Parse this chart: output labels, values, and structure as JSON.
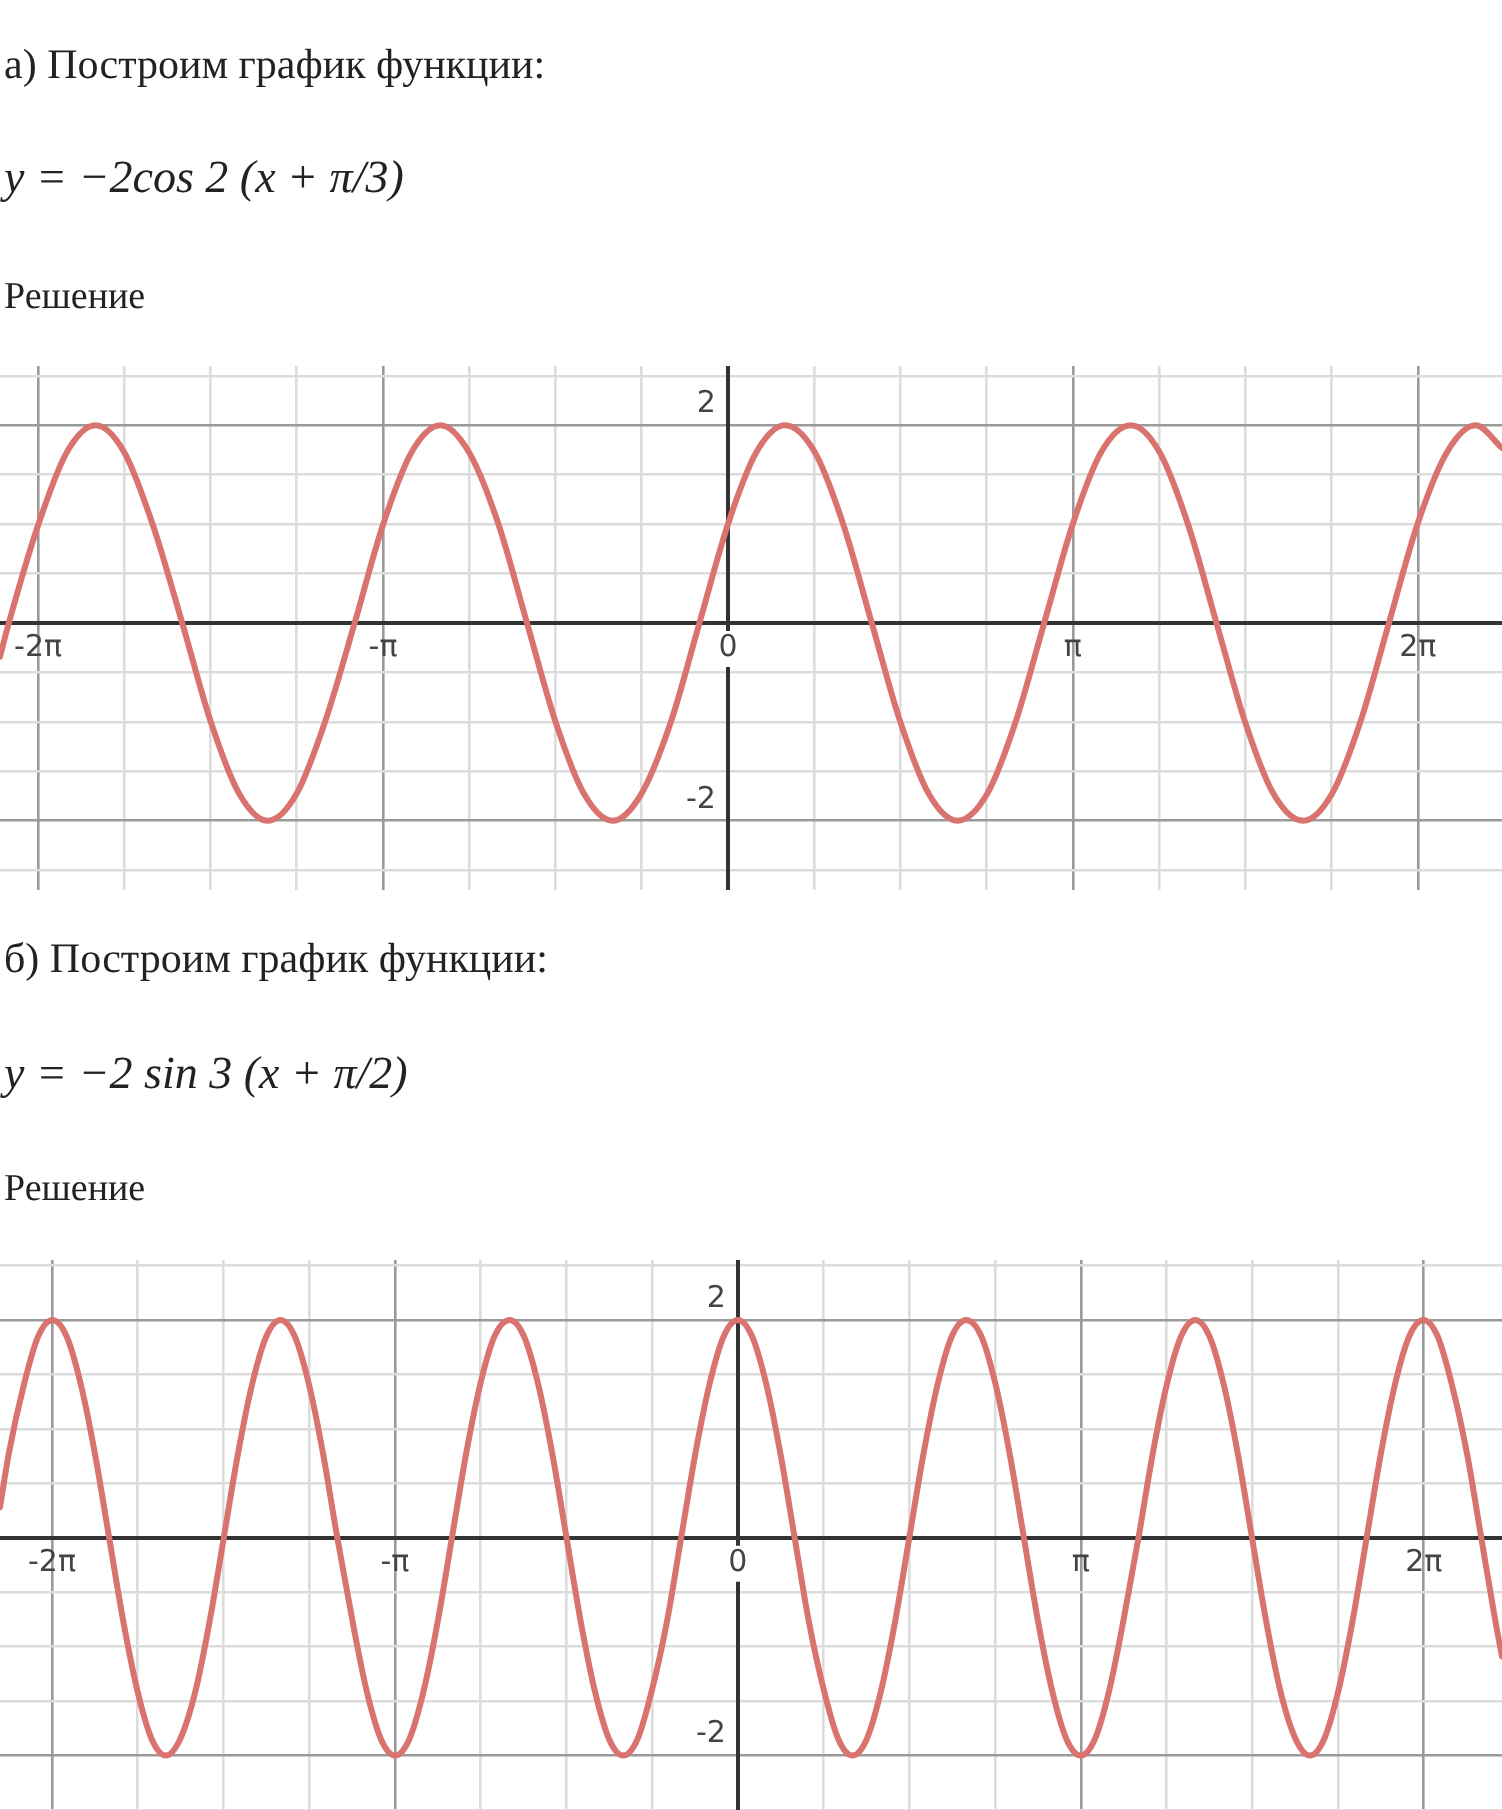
{
  "chart_data": [
    {
      "type": "line",
      "title": "а) Построим график функции:",
      "subtitle": "y = −2cos 2 (x + π/3)",
      "annotations": [
        "Решение"
      ],
      "x": [
        -6.63,
        -6.55,
        -6.28,
        -6.02,
        -5.76,
        -5.5,
        -5.24,
        -4.97,
        -4.71,
        -4.45,
        -4.19,
        -3.93,
        -3.67,
        -3.4,
        -3.14,
        -2.88,
        -2.62,
        -2.36,
        -2.09,
        -1.83,
        -1.57,
        -1.31,
        -1.05,
        -0.79,
        -0.52,
        -0.26,
        0,
        0.26,
        0.52,
        0.79,
        1.05,
        1.31,
        1.57,
        1.83,
        2.09,
        2.36,
        2.62,
        2.88,
        3.14,
        3.4,
        3.67,
        3.93,
        4.19,
        4.45,
        4.71,
        4.97,
        5.24,
        5.5,
        5.76,
        6.02,
        6.28,
        6.55,
        6.81,
        7.05
      ],
      "series": [
        {
          "color": "#d9736f",
          "values": [
            -0.34,
            0,
            1,
            1.73,
            2,
            1.73,
            1,
            0,
            -1,
            -1.73,
            -2,
            -1.73,
            -1,
            0,
            1,
            1.73,
            2,
            1.73,
            1,
            0,
            -1,
            -1.73,
            -2,
            -1.73,
            -1,
            0,
            1,
            1.73,
            2,
            1.73,
            1,
            0,
            -1,
            -1.73,
            -2,
            -1.73,
            -1,
            0,
            1,
            1.73,
            2,
            1.73,
            1,
            0,
            -1,
            -1.73,
            -2,
            -1.73,
            -1,
            0,
            1,
            1.73,
            2,
            1.77
          ]
        }
      ],
      "xlim": [
        -6.63,
        7.05
      ],
      "ylim": [
        -2.7,
        2.6
      ],
      "xticks": [
        {
          "value": -6.2832,
          "label": "-2π"
        },
        {
          "value": -5.4978,
          "label": null
        },
        {
          "value": -4.7124,
          "label": null
        },
        {
          "value": -3.927,
          "label": null
        },
        {
          "value": -3.1416,
          "label": "-π"
        },
        {
          "value": -2.3562,
          "label": null
        },
        {
          "value": -1.5708,
          "label": null
        },
        {
          "value": -0.7854,
          "label": null
        },
        {
          "value": 0,
          "label": "0"
        },
        {
          "value": 0.7854,
          "label": null
        },
        {
          "value": 1.5708,
          "label": null
        },
        {
          "value": 2.3562,
          "label": null
        },
        {
          "value": 3.1416,
          "label": "π"
        },
        {
          "value": 3.927,
          "label": null
        },
        {
          "value": 4.7124,
          "label": null
        },
        {
          "value": 5.4978,
          "label": null
        },
        {
          "value": 6.2832,
          "label": "2π"
        }
      ],
      "yticks": [
        {
          "value": -2.5,
          "label": null
        },
        {
          "value": -2,
          "label": "-2"
        },
        {
          "value": -1.5,
          "label": null
        },
        {
          "value": -1,
          "label": null
        },
        {
          "value": -0.5,
          "label": null
        },
        {
          "value": 0,
          "label": null
        },
        {
          "value": 0.5,
          "label": null
        },
        {
          "value": 1,
          "label": null
        },
        {
          "value": 1.5,
          "label": null
        },
        {
          "value": 2,
          "label": "2"
        },
        {
          "value": 2.5,
          "label": null
        }
      ],
      "grid": true,
      "marker": "none"
    },
    {
      "type": "line",
      "title": "б) Построим график функции:",
      "subtitle": "y = −2 sin 3 (x + π/2)",
      "annotations": [
        "Решение"
      ],
      "x": [
        -6.76,
        -6.68,
        -6.54,
        -6.41,
        -6.28,
        -6.15,
        -6.02,
        -5.89,
        -5.76,
        -5.63,
        -5.5,
        -5.37,
        -5.24,
        -5.11,
        -4.97,
        -4.84,
        -4.71,
        -4.58,
        -4.45,
        -4.32,
        -4.19,
        -4.06,
        -3.93,
        -3.8,
        -3.67,
        -3.53,
        -3.4,
        -3.27,
        -3.14,
        -3.01,
        -2.88,
        -2.75,
        -2.62,
        -2.49,
        -2.36,
        -2.23,
        -2.09,
        -1.96,
        -1.83,
        -1.7,
        -1.57,
        -1.44,
        -1.31,
        -1.18,
        -1.05,
        -0.92,
        -0.79,
        -0.65,
        -0.52,
        -0.39,
        -0.26,
        -0.13,
        0,
        0.13,
        0.26,
        0.39,
        0.52,
        0.65,
        0.79,
        0.92,
        1.05,
        1.18,
        1.31,
        1.44,
        1.57,
        1.7,
        1.83,
        1.96,
        2.09,
        2.23,
        2.36,
        2.49,
        2.62,
        2.75,
        2.88,
        3.01,
        3.14,
        3.27,
        3.4,
        3.53,
        3.67,
        3.8,
        3.93,
        4.06,
        4.19,
        4.32,
        4.45,
        4.58,
        4.71,
        4.84,
        4.97,
        5.11,
        5.24,
        5.37,
        5.5,
        5.63,
        5.76,
        5.89,
        6.02,
        6.15,
        6.28,
        6.41,
        6.54,
        6.68,
        6.81,
        6.94,
        7.0
      ],
      "series": [
        {
          "color": "#d9736f",
          "values": [
            0.28,
            0.77,
            1.41,
            1.85,
            2,
            1.85,
            1.41,
            0.77,
            0,
            -0.77,
            -1.41,
            -1.85,
            -2,
            -1.85,
            -1.41,
            -0.77,
            0,
            0.77,
            1.41,
            1.85,
            2,
            1.85,
            1.41,
            0.77,
            0,
            -0.77,
            -1.41,
            -1.85,
            -2,
            -1.85,
            -1.41,
            -0.77,
            0,
            0.77,
            1.41,
            1.85,
            2,
            1.85,
            1.41,
            0.77,
            0,
            -0.77,
            -1.41,
            -1.85,
            -2,
            -1.85,
            -1.41,
            -0.77,
            0,
            0.77,
            1.41,
            1.85,
            2,
            1.85,
            1.41,
            0.77,
            0,
            -0.77,
            -1.41,
            -1.85,
            -2,
            -1.85,
            -1.41,
            -0.77,
            0,
            0.77,
            1.41,
            1.85,
            2,
            1.85,
            1.41,
            0.77,
            0,
            -0.77,
            -1.41,
            -1.85,
            -2,
            -1.85,
            -1.41,
            -0.77,
            0,
            0.77,
            1.41,
            1.85,
            2,
            1.85,
            1.41,
            0.77,
            0,
            -0.77,
            -1.41,
            -1.85,
            -2,
            -1.85,
            -1.41,
            -0.77,
            0,
            0.77,
            1.41,
            1.85,
            2,
            1.85,
            1.41,
            0.77,
            0,
            -0.77,
            -1.09
          ]
        }
      ],
      "xlim": [
        -6.76,
        7.0
      ],
      "ylim": [
        -2.5,
        2.55
      ],
      "xticks": [
        {
          "value": -6.2832,
          "label": "-2π"
        },
        {
          "value": -5.4978,
          "label": null
        },
        {
          "value": -4.7124,
          "label": null
        },
        {
          "value": -3.927,
          "label": null
        },
        {
          "value": -3.1416,
          "label": "-π"
        },
        {
          "value": -2.3562,
          "label": null
        },
        {
          "value": -1.5708,
          "label": null
        },
        {
          "value": -0.7854,
          "label": null
        },
        {
          "value": 0,
          "label": "0"
        },
        {
          "value": 0.7854,
          "label": null
        },
        {
          "value": 1.5708,
          "label": null
        },
        {
          "value": 2.3562,
          "label": null
        },
        {
          "value": 3.1416,
          "label": "π"
        },
        {
          "value": 3.927,
          "label": null
        },
        {
          "value": 4.7124,
          "label": null
        },
        {
          "value": 5.4978,
          "label": null
        },
        {
          "value": 6.2832,
          "label": "2π"
        }
      ],
      "yticks": [
        {
          "value": -2.5,
          "label": null
        },
        {
          "value": -2,
          "label": "-2"
        },
        {
          "value": -1.5,
          "label": null
        },
        {
          "value": -1,
          "label": null
        },
        {
          "value": -0.5,
          "label": null
        },
        {
          "value": 0,
          "label": null
        },
        {
          "value": 0.5,
          "label": null
        },
        {
          "value": 1,
          "label": null
        },
        {
          "value": 1.5,
          "label": null
        },
        {
          "value": 2,
          "label": "2"
        },
        {
          "value": 2.5,
          "label": null
        }
      ],
      "grid": true,
      "marker": "none"
    }
  ]
}
